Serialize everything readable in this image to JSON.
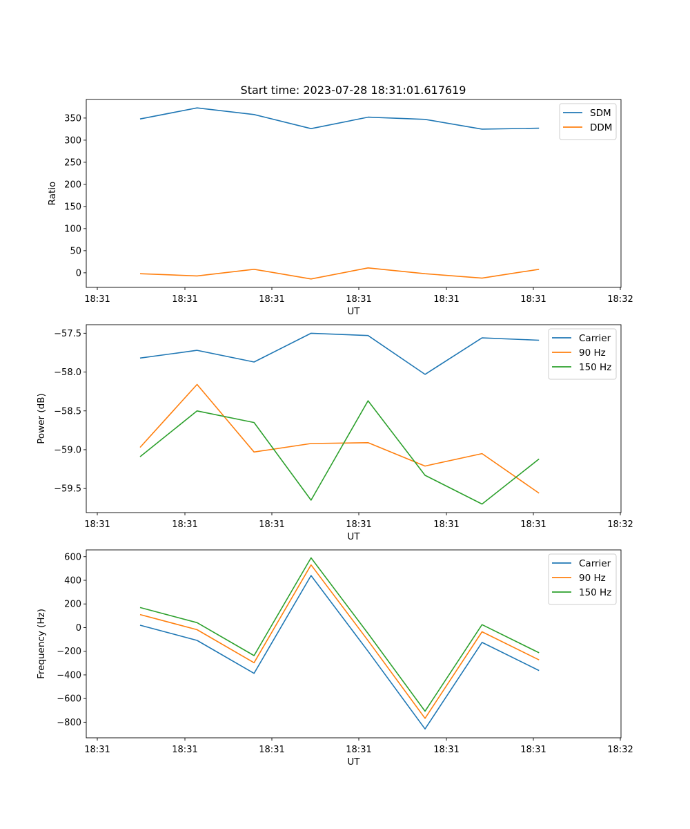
{
  "chart_data": [
    {
      "type": "line",
      "title": "Start time: 2023-07-28 18:31:01.617619",
      "xlabel": "UT",
      "ylabel": "Ratio",
      "x_tick_labels": [
        "18:31",
        "18:31",
        "18:31",
        "18:31",
        "18:31",
        "18:31",
        "18:32"
      ],
      "ylim": [
        -33,
        392
      ],
      "y_ticks": [
        0,
        50,
        100,
        150,
        200,
        250,
        300,
        350
      ],
      "legend_position": "top-right",
      "series": [
        {
          "name": "SDM",
          "color": "#1f77b4",
          "values": [
            348,
            373,
            358,
            326,
            352,
            347,
            325,
            327
          ]
        },
        {
          "name": "DDM",
          "color": "#ff7f0e",
          "values": [
            -2,
            -7,
            8,
            -14,
            11,
            -2,
            -12,
            8
          ]
        }
      ]
    },
    {
      "type": "line",
      "title": "",
      "xlabel": "UT",
      "ylabel": "Power (dB)",
      "x_tick_labels": [
        "18:31",
        "18:31",
        "18:31",
        "18:31",
        "18:31",
        "18:31",
        "18:32"
      ],
      "ylim": [
        -59.81,
        -57.39
      ],
      "y_ticks": [
        -59.5,
        -59.0,
        -58.5,
        -58.0,
        -57.5
      ],
      "legend_position": "top-right",
      "series": [
        {
          "name": "Carrier",
          "color": "#1f77b4",
          "values": [
            -57.82,
            -57.72,
            -57.87,
            -57.5,
            -57.53,
            -58.03,
            -57.56,
            -57.59
          ]
        },
        {
          "name": "90 Hz",
          "color": "#ff7f0e",
          "values": [
            -58.97,
            -58.16,
            -59.03,
            -58.92,
            -58.91,
            -59.21,
            -59.05,
            -59.56
          ]
        },
        {
          "name": "150 Hz",
          "color": "#2ca02c",
          "values": [
            -59.09,
            -58.5,
            -58.65,
            -59.65,
            -58.37,
            -59.33,
            -59.7,
            -59.12
          ]
        }
      ]
    },
    {
      "type": "line",
      "title": "",
      "xlabel": "UT",
      "ylabel": "Frequency (Hz)",
      "x_tick_labels": [
        "18:31",
        "18:31",
        "18:31",
        "18:31",
        "18:31",
        "18:31",
        "18:32"
      ],
      "ylim": [
        -932,
        657
      ],
      "y_ticks": [
        -800,
        -600,
        -400,
        -200,
        0,
        200,
        400,
        600
      ],
      "legend_position": "top-right",
      "series": [
        {
          "name": "Carrier",
          "color": "#1f77b4",
          "values": [
            20,
            -108,
            -387,
            440,
            -200,
            -857,
            -125,
            -363
          ]
        },
        {
          "name": "90 Hz",
          "color": "#ff7f0e",
          "values": [
            110,
            -18,
            -297,
            530,
            -110,
            -767,
            -35,
            -273
          ]
        },
        {
          "name": "150 Hz",
          "color": "#2ca02c",
          "values": [
            170,
            42,
            -237,
            590,
            -50,
            -707,
            25,
            -213
          ]
        }
      ]
    }
  ]
}
